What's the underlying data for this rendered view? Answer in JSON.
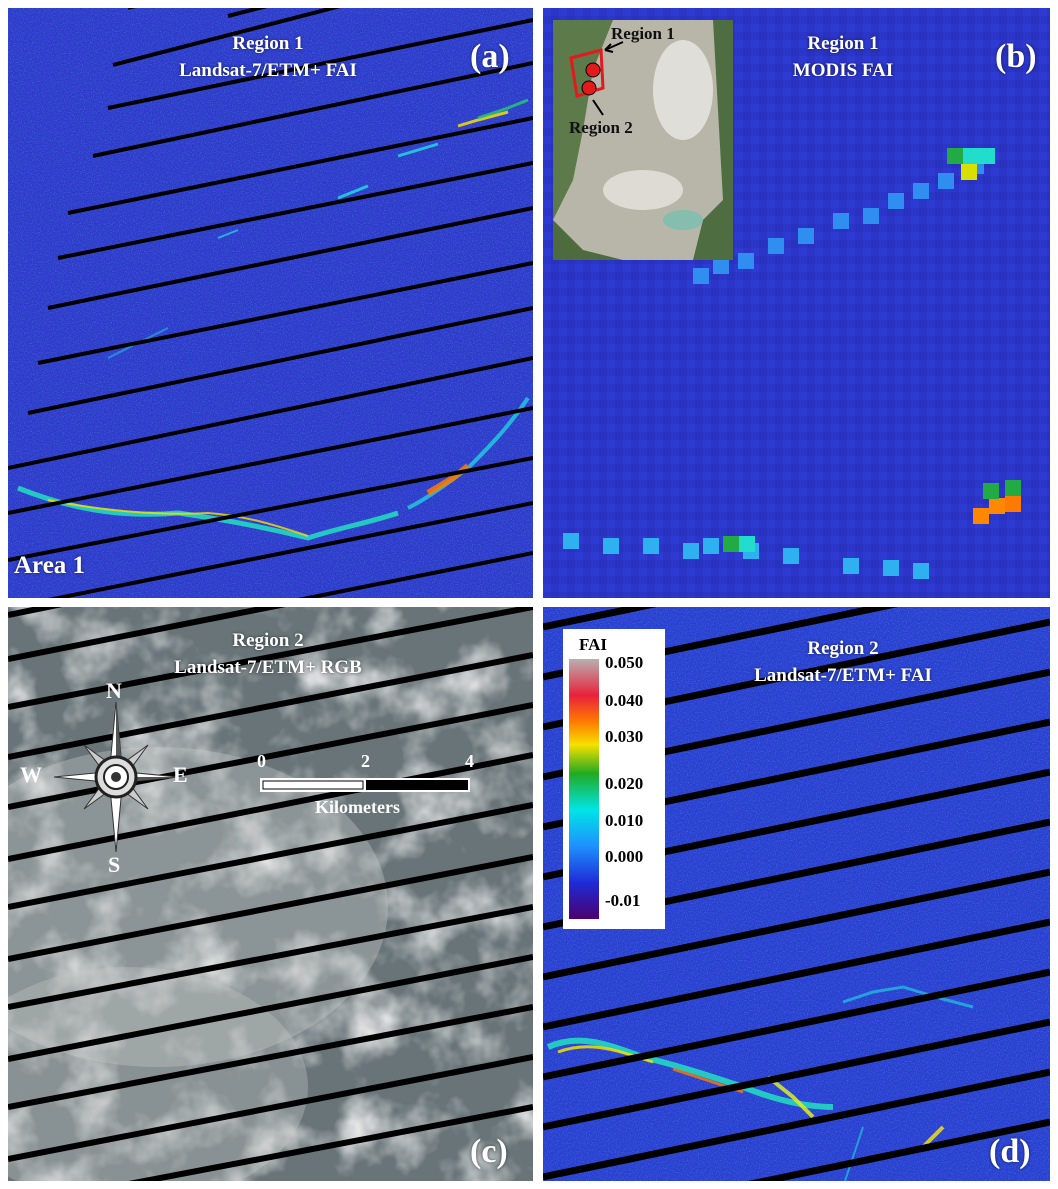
{
  "panels": {
    "a": {
      "title_line1": "Region 1",
      "title_line2": "Landsat-7/ETM+ FAI",
      "letter": "(a)",
      "area_label": "Area 1"
    },
    "b": {
      "title_line1": "Region 1",
      "title_line2": "MODIS FAI",
      "letter": "(b)",
      "inset": {
        "region1_label": "Region 1",
        "region2_label": "Region 2",
        "marker_color": "#e31a1c"
      }
    },
    "c": {
      "title_line1": "Region 2",
      "title_line2": "Landsat-7/ETM+ RGB",
      "letter": "(c)",
      "compass": {
        "n": "N",
        "s": "S",
        "e": "E",
        "w": "W"
      },
      "scalebar": {
        "ticks": [
          "0",
          "2",
          "4"
        ],
        "unit": "Kilometers"
      }
    },
    "d": {
      "title_line1": "Region 2",
      "title_line2": "Landsat-7/ETM+ FAI",
      "letter": "(d)",
      "legend": {
        "title": "FAI",
        "ticks": [
          "0.050",
          "0.040",
          "0.030",
          "0.020",
          "0.010",
          "0.000",
          "-0.01"
        ],
        "colors": [
          "#4b006e",
          "#1f2bd6",
          "#1e90ff",
          "#00e5e5",
          "#22aa22",
          "#f5e000",
          "#ff7a00",
          "#e8213c",
          "#b8b0b0"
        ]
      }
    }
  },
  "colors": {
    "fai_background": "#2a3fd0",
    "modis_background": "#2b35c8",
    "rgb_background": "#5d6b70",
    "stripe": "#000000"
  }
}
